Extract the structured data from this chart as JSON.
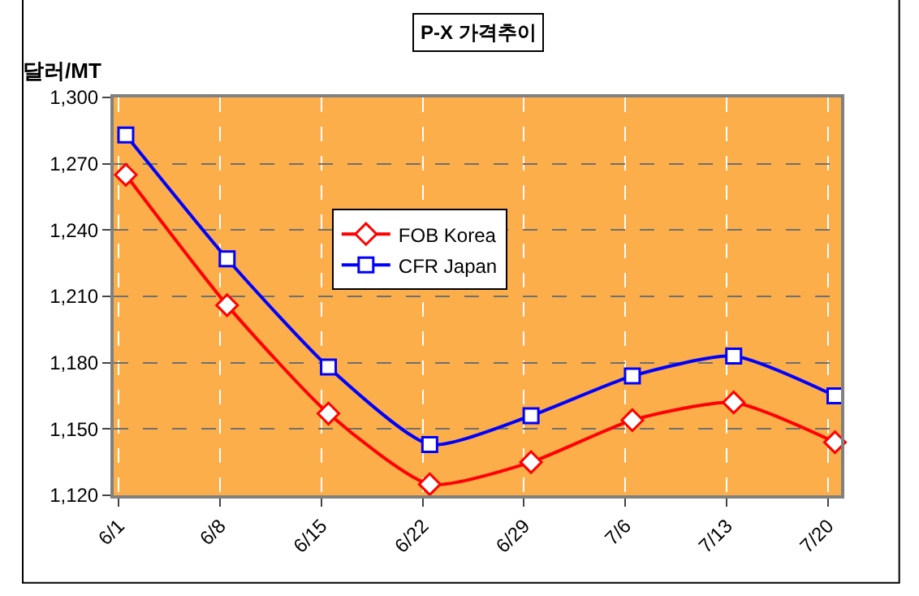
{
  "chart_data": {
    "type": "line",
    "title": "P-X 가격추이",
    "ylabel": "달러/MT",
    "categories": [
      "6/1",
      "6/8",
      "6/15",
      "6/22",
      "6/29",
      "7/6",
      "7/13",
      "7/20"
    ],
    "series": [
      {
        "name": "FOB Korea",
        "color": "#ff0000",
        "marker": "diamond",
        "values": [
          1265,
          1206,
          1157,
          1125,
          1135,
          1154,
          1162,
          1144
        ]
      },
      {
        "name": "CFR Japan",
        "color": "#0000ff",
        "marker": "square",
        "values": [
          1283,
          1227,
          1178,
          1143,
          1156,
          1174,
          1183,
          1165
        ]
      }
    ],
    "ylim": [
      1120,
      1300
    ],
    "yticks": [
      {
        "value": 1120,
        "label": "1,120"
      },
      {
        "value": 1150,
        "label": "1,150"
      },
      {
        "value": 1180,
        "label": "1,180"
      },
      {
        "value": 1210,
        "label": "1,210"
      },
      {
        "value": 1240,
        "label": "1,240"
      },
      {
        "value": 1270,
        "label": "1,270"
      },
      {
        "value": 1300,
        "label": "1,300"
      }
    ],
    "grid": true,
    "legend": "top center",
    "line_style": "solid"
  }
}
